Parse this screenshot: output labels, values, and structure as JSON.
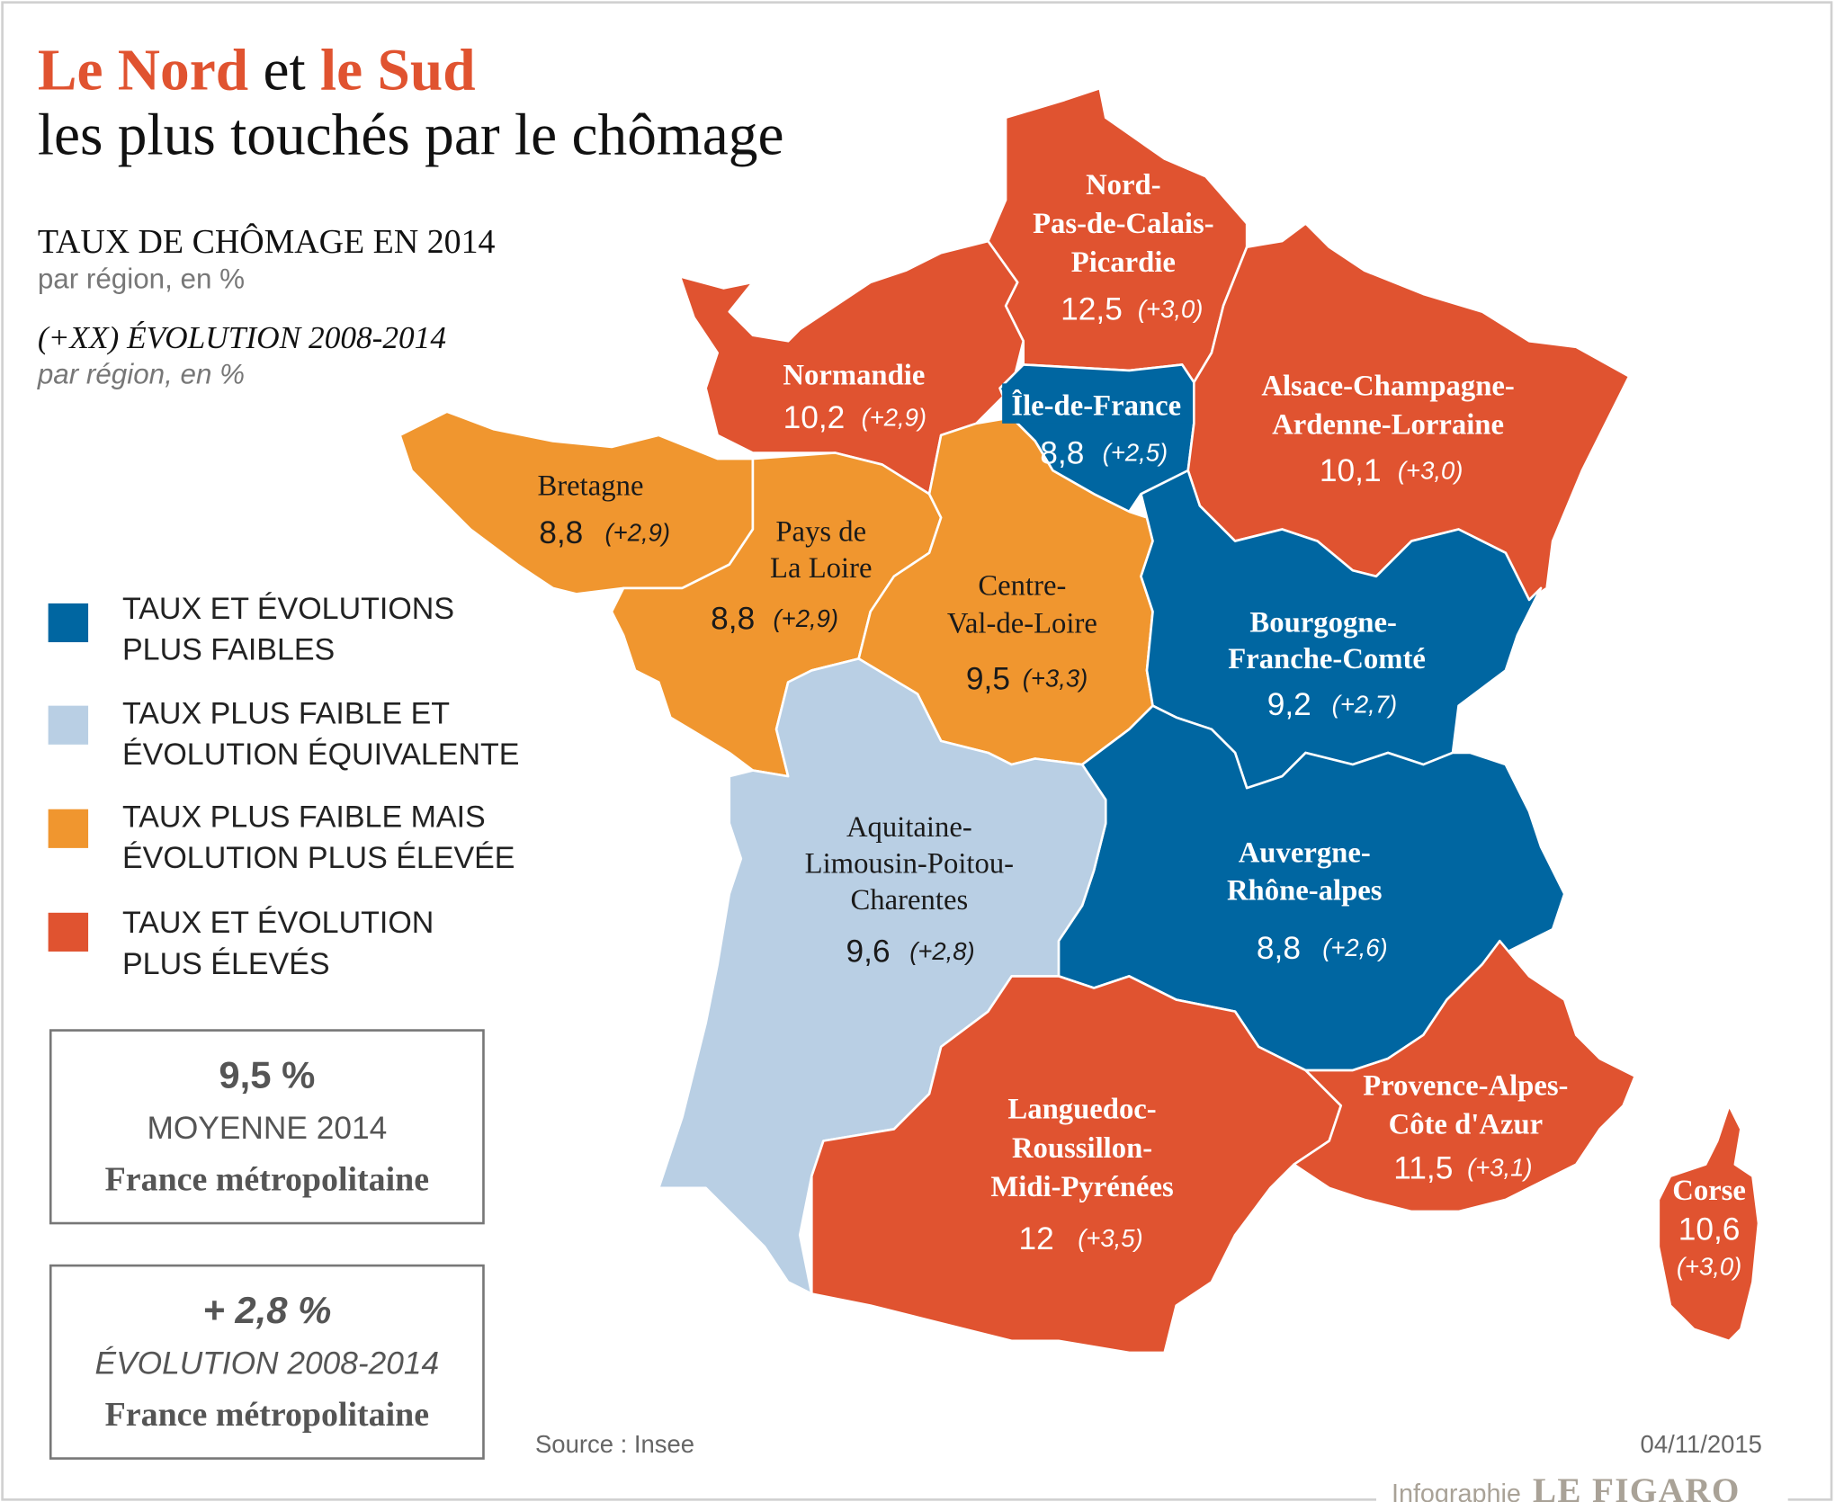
{
  "title": {
    "part1": "Le Nord",
    "part2": " et ",
    "part3": "le Sud",
    "line2": "les plus touchés par le chômage"
  },
  "subtitle": {
    "heading1": "TAUX DE CHÔMAGE EN 2014",
    "sub1": "par région, en %",
    "heading2": "(+XX) ÉVOLUTION 2008-2014",
    "sub2": "par région, en %"
  },
  "legend": [
    {
      "line1": "TAUX ET ÉVOLUTIONS",
      "line2": "PLUS FAIBLES",
      "color": "#0066a1"
    },
    {
      "line1": "TAUX PLUS FAIBLE ET",
      "line2": "ÉVOLUTION ÉQUIVALENTE",
      "color": "#b9cfe4"
    },
    {
      "line1": "TAUX PLUS FAIBLE MAIS",
      "line2": "ÉVOLUTION PLUS ÉLEVÉE",
      "color": "#f0962f"
    },
    {
      "line1": "TAUX ET ÉVOLUTION",
      "line2": "PLUS ÉLEVÉS",
      "color": "#e05330"
    }
  ],
  "boxes": [
    {
      "value": "9,5 %",
      "label": "MOYENNE 2014",
      "scope": "France métropolitaine"
    },
    {
      "value": "+ 2,8 %",
      "label": "ÉVOLUTION 2008-2014",
      "scope": "France métropolitaine"
    }
  ],
  "regions": {
    "nord": {
      "name": [
        "Nord-",
        "Pas-de-Calais-",
        "Picardie"
      ],
      "rate": "12,5",
      "evo": "(+3,0)",
      "category": 4
    },
    "normandie": {
      "name": [
        "Normandie"
      ],
      "rate": "10,2",
      "evo": "(+2,9)",
      "category": 4
    },
    "idf": {
      "name": [
        "Île-de-France"
      ],
      "rate": "8,8",
      "evo": "(+2,5)",
      "category": 1
    },
    "alsace": {
      "name": [
        "Alsace-Champagne-",
        "Ardenne-Lorraine"
      ],
      "rate": "10,1",
      "evo": "(+3,0)",
      "category": 4
    },
    "bretagne": {
      "name": [
        "Bretagne"
      ],
      "rate": "8,8",
      "evo": "(+2,9)",
      "category": 3
    },
    "pdl": {
      "name": [
        "Pays de",
        "La Loire"
      ],
      "rate": "8,8",
      "evo": "(+2,9)",
      "category": 3
    },
    "centre": {
      "name": [
        "Centre-",
        "Val-de-Loire"
      ],
      "rate": "9,5",
      "evo": "(+3,3)",
      "category": 3
    },
    "bourgogne": {
      "name": [
        "Bourgogne-",
        "Franche-Comté"
      ],
      "rate": "9,2",
      "evo": "(+2,7)",
      "category": 1
    },
    "ara": {
      "name": [
        "Auvergne-",
        "Rhône-alpes"
      ],
      "rate": "8,8",
      "evo": "(+2,6)",
      "category": 1
    },
    "aquitaine": {
      "name": [
        "Aquitaine-",
        "Limousin-Poitou-",
        "Charentes"
      ],
      "rate": "9,6",
      "evo": "(+2,8)",
      "category": 2
    },
    "lrmp": {
      "name": [
        "Languedoc-",
        "Roussillon-",
        "Midi-Pyrénées"
      ],
      "rate": "12",
      "evo": "(+3,5)",
      "category": 4
    },
    "paca": {
      "name": [
        "Provence-Alpes-",
        "Côte d'Azur"
      ],
      "rate": "11,5",
      "evo": "(+3,1)",
      "category": 4
    },
    "corse": {
      "name": [
        "Corse"
      ],
      "rate": "10,6",
      "evo": "(+3,0)",
      "category": 4
    }
  },
  "footer": {
    "source": "Source : Insee",
    "date": "04/11/2015",
    "credit": "Infographie",
    "brand": "LE FIGARO"
  },
  "colors": {
    "accent": "#e05330",
    "orange": "#f0962f",
    "blue": "#0066a1",
    "lightblue": "#b9cfe4",
    "grey": "#a9a297"
  }
}
